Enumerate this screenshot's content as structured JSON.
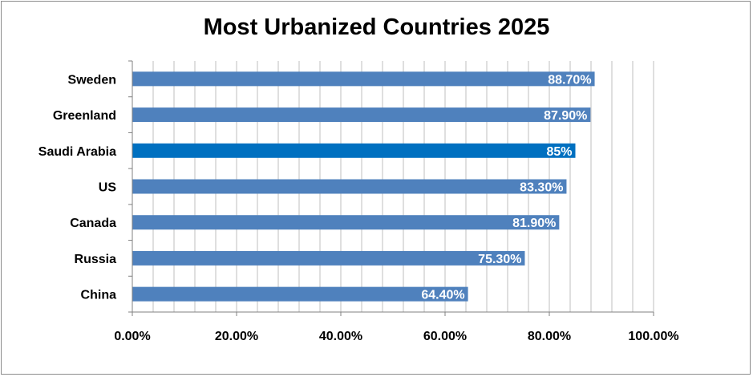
{
  "chart_data": {
    "type": "bar",
    "orientation": "horizontal",
    "title": "Most Urbanized Countries 2025",
    "xlabel": "",
    "ylabel": "",
    "categories": [
      "Sweden",
      "Greenland",
      "Saudi Arabia",
      "US",
      "Canada",
      "Russia",
      "China"
    ],
    "values": [
      88.7,
      87.9,
      85,
      83.3,
      81.9,
      75.3,
      64.4
    ],
    "data_labels": [
      "88.70%",
      "87.90%",
      "85%",
      "83.30%",
      "81.90%",
      "75.30%",
      "64.40%"
    ],
    "xlim": [
      0,
      100
    ],
    "x_ticks": [
      "0.00%",
      "20.00%",
      "40.00%",
      "60.00%",
      "80.00%",
      "100.00%"
    ],
    "grid": "vertical",
    "legend": "none",
    "colors": {
      "bar": "#4f81bd",
      "highlight_bar": "#0070c0",
      "gridline": "#bfbfbf",
      "axis": "#808080",
      "data_label": "#ffffff"
    },
    "highlight_category": "Saudi Arabia"
  }
}
